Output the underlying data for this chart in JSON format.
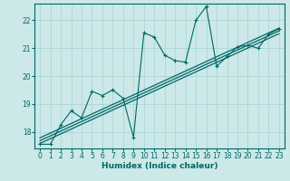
{
  "title": "",
  "xlabel": "Humidex (Indice chaleur)",
  "xlim": [
    -0.5,
    23.5
  ],
  "ylim": [
    17.4,
    22.6
  ],
  "yticks": [
    18,
    19,
    20,
    21,
    22
  ],
  "xticks": [
    0,
    1,
    2,
    3,
    4,
    5,
    6,
    7,
    8,
    9,
    10,
    11,
    12,
    13,
    14,
    15,
    16,
    17,
    18,
    19,
    20,
    21,
    22,
    23
  ],
  "bg_color": "#cce8e8",
  "line_color": "#006666",
  "grid_color": "#b0d8d8",
  "series1_x": [
    0,
    1,
    2,
    3,
    4,
    5,
    6,
    7,
    8,
    9,
    10,
    11,
    12,
    13,
    14,
    15,
    16,
    17,
    18,
    19,
    20,
    21,
    22,
    23
  ],
  "series1_y": [
    17.55,
    17.55,
    18.25,
    18.75,
    18.5,
    19.45,
    19.3,
    19.5,
    19.2,
    17.8,
    21.55,
    21.4,
    20.75,
    20.55,
    20.5,
    22.0,
    22.5,
    20.35,
    20.7,
    21.05,
    21.1,
    21.0,
    21.5,
    21.7
  ],
  "regression_lines": [
    [
      [
        0,
        23
      ],
      [
        17.58,
        21.52
      ]
    ],
    [
      [
        0,
        23
      ],
      [
        17.68,
        21.62
      ]
    ],
    [
      [
        0,
        23
      ],
      [
        17.78,
        21.72
      ]
    ]
  ]
}
